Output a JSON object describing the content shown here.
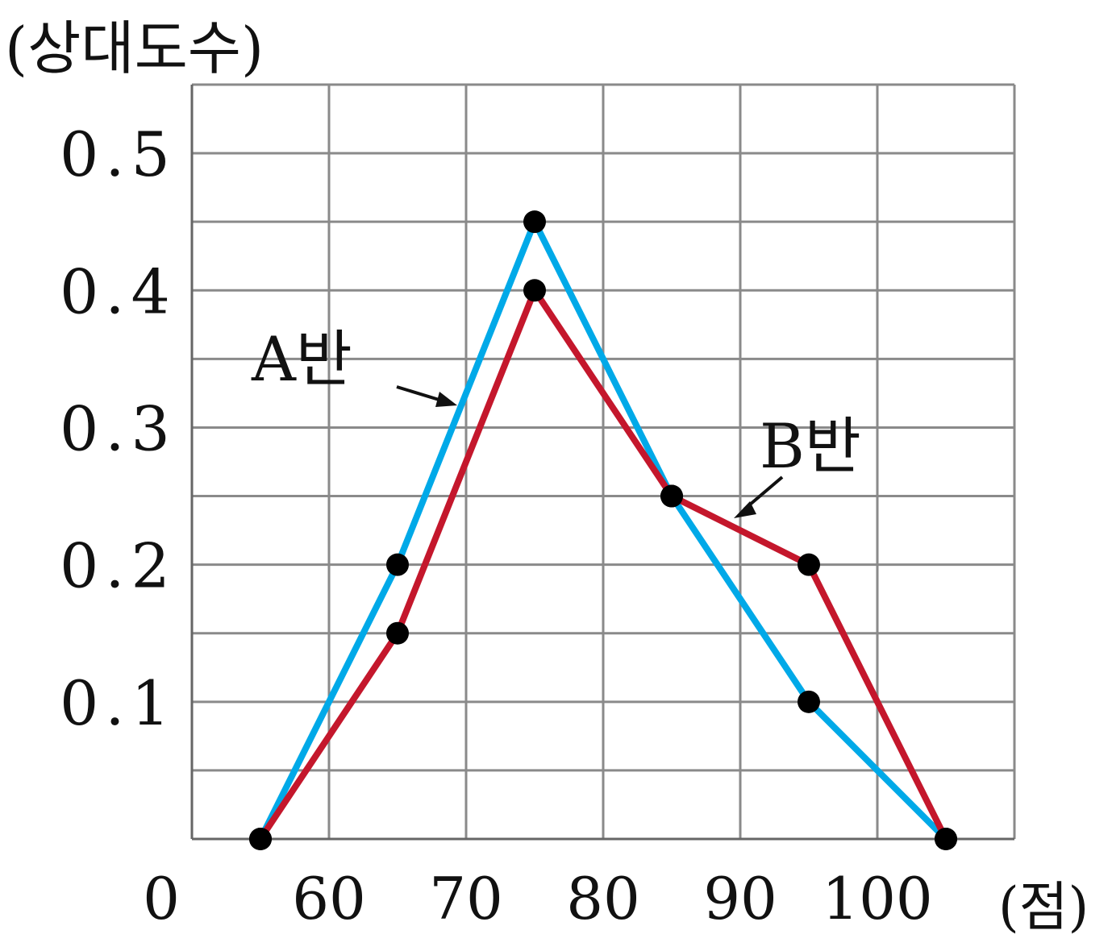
{
  "chart_data": {
    "type": "line",
    "ylabel": "(상대도수)",
    "xlabel": "(점)",
    "origin_label": "0",
    "x_ticks": [
      60,
      70,
      80,
      90,
      100
    ],
    "x_tick_labels": [
      "60",
      "70",
      "80",
      "90",
      "100"
    ],
    "y_ticks": [
      0.1,
      0.2,
      0.3,
      0.4,
      0.5
    ],
    "y_tick_labels": [
      "0.1",
      "0.2",
      "0.3",
      "0.4",
      "0.5"
    ],
    "xlim": [
      50,
      110
    ],
    "ylim": [
      0,
      0.55
    ],
    "grid": true,
    "grid_x_step": 10,
    "grid_y_step": 0.05,
    "series": [
      {
        "name": "A반",
        "color": "#00a9e8",
        "x": [
          55,
          65,
          75,
          85,
          95,
          105
        ],
        "y": [
          0,
          0.2,
          0.45,
          0.25,
          0.1,
          0
        ]
      },
      {
        "name": "B반",
        "color": "#c4172c",
        "x": [
          55,
          65,
          75,
          85,
          95,
          105
        ],
        "y": [
          0,
          0.15,
          0.4,
          0.25,
          0.2,
          0
        ]
      }
    ],
    "point_color": "#000000"
  }
}
